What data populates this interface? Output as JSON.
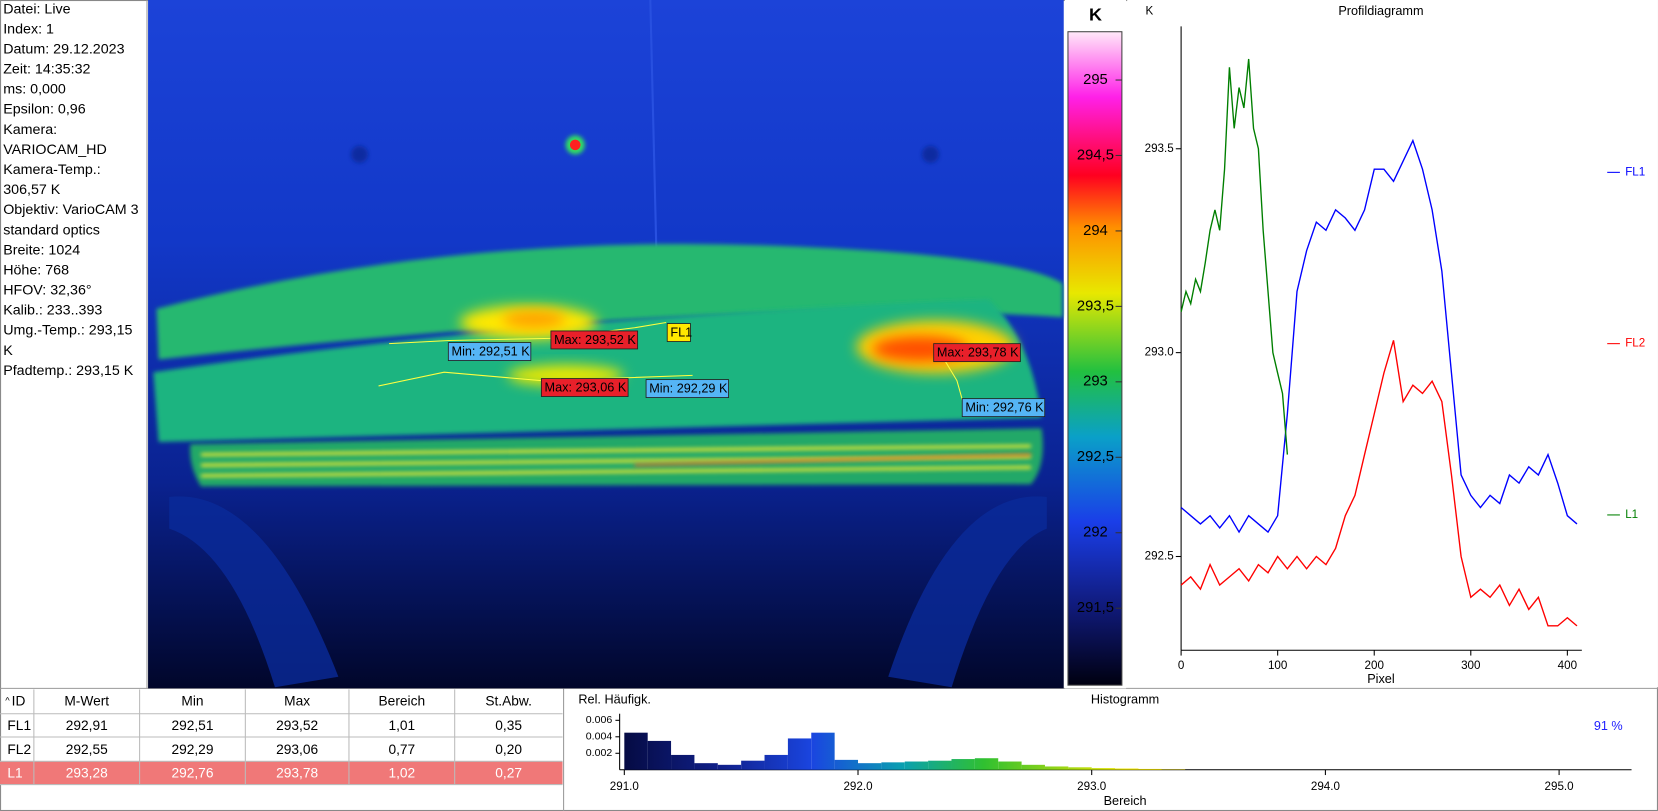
{
  "info_panel": {
    "lines": [
      "Datei: Live",
      "Index: 1",
      "Datum: 29.12.2023",
      "Zeit: 14:35:32",
      "ms: 0,000",
      "Epsilon: 0,96",
      "Kamera:",
      "VARIOCAM_HD",
      "Kamera-Temp.:",
      "306,57 K",
      "Objektiv: VarioCAM 3",
      "standard optics",
      "Breite: 1024",
      "Höhe: 768",
      "HFOV: 32,36°",
      "Kalib.: 233..393",
      "Umg.-Temp.: 293,15",
      "K",
      "Pfadtemp.: 293,15 K"
    ]
  },
  "thermal_image": {
    "labels": [
      "Min: 292,51 K",
      "Max: 293,52 K",
      "FL1",
      "Max: 293,06 K",
      "Min: 292,29 K",
      "Max: 293,78 K",
      "Min: 292,76 K"
    ]
  },
  "color_scale": {
    "unit": "K",
    "ylim": [
      290.99,
      295.32
    ],
    "ticks": [
      295,
      {
        "value": 294.5,
        "label": "294,5"
      },
      294,
      {
        "value": 293.5,
        "label": "293,5"
      },
      293,
      {
        "value": 292.5,
        "label": "292,5"
      },
      292,
      {
        "value": 291.5,
        "label": "291,5"
      }
    ]
  },
  "profile_chart": {
    "type": "line",
    "title": "Profildiagramm",
    "y_unit": "K",
    "x_label": "Pixel",
    "xlim": [
      0,
      415
    ],
    "ylim": [
      292.27,
      293.8
    ],
    "xticks": [
      0,
      100,
      200,
      300,
      400
    ],
    "yticks": [
      292.5,
      {
        "value": 293.0,
        "label": "293.0"
      },
      293.5
    ],
    "series": [
      {
        "name": "FL1",
        "color": "#0000ff",
        "x": [
          0,
          10,
          20,
          30,
          40,
          50,
          60,
          70,
          80,
          90,
          100,
          110,
          120,
          130,
          140,
          150,
          160,
          170,
          180,
          190,
          200,
          210,
          220,
          230,
          240,
          250,
          260,
          270,
          280,
          290,
          300,
          310,
          320,
          330,
          340,
          350,
          360,
          370,
          380,
          390,
          400,
          410
        ],
        "values": [
          292.62,
          292.6,
          292.58,
          292.6,
          292.57,
          292.6,
          292.56,
          292.6,
          292.58,
          292.56,
          292.6,
          292.85,
          293.15,
          293.25,
          293.32,
          293.3,
          293.35,
          293.33,
          293.3,
          293.35,
          293.45,
          293.45,
          293.42,
          293.47,
          293.52,
          293.45,
          293.35,
          293.2,
          292.95,
          292.7,
          292.65,
          292.62,
          292.65,
          292.63,
          292.7,
          292.68,
          292.72,
          292.7,
          292.75,
          292.68,
          292.6,
          292.58
        ]
      },
      {
        "name": "FL2",
        "color": "#ff0000",
        "x": [
          0,
          10,
          20,
          30,
          40,
          50,
          60,
          70,
          80,
          90,
          100,
          110,
          120,
          130,
          140,
          150,
          160,
          170,
          180,
          190,
          200,
          210,
          220,
          230,
          240,
          250,
          260,
          270,
          280,
          290,
          300,
          310,
          320,
          330,
          340,
          350,
          360,
          370,
          380,
          390,
          400,
          410
        ],
        "values": [
          292.43,
          292.45,
          292.42,
          292.48,
          292.43,
          292.45,
          292.47,
          292.44,
          292.48,
          292.46,
          292.5,
          292.47,
          292.5,
          292.47,
          292.5,
          292.48,
          292.52,
          292.6,
          292.65,
          292.75,
          292.85,
          292.95,
          293.03,
          292.88,
          292.92,
          292.9,
          292.93,
          292.88,
          292.7,
          292.5,
          292.4,
          292.42,
          292.4,
          292.43,
          292.38,
          292.42,
          292.37,
          292.4,
          292.33,
          292.33,
          292.35,
          292.33
        ]
      },
      {
        "name": "L1",
        "color": "#007f00",
        "x": [
          0,
          5,
          10,
          15,
          20,
          25,
          30,
          35,
          40,
          45,
          50,
          55,
          60,
          65,
          70,
          75,
          80,
          85,
          90,
          95,
          100,
          105,
          110
        ],
        "values": [
          293.1,
          293.15,
          293.12,
          293.18,
          293.15,
          293.22,
          293.3,
          293.35,
          293.3,
          293.45,
          293.7,
          293.55,
          293.65,
          293.6,
          293.72,
          293.55,
          293.5,
          293.3,
          293.15,
          293.0,
          292.95,
          292.9,
          292.75
        ]
      }
    ]
  },
  "histogram": {
    "type": "histogram",
    "title": "Histogramm",
    "y_label": "Rel. Häufigk.",
    "x_label": "Bereich",
    "percent_label": "91 %",
    "xlim": [
      290.98,
      295.31
    ],
    "ylim": [
      0,
      0.0068
    ],
    "xticks": [
      {
        "value": 291.0,
        "label": "291.0"
      },
      {
        "value": 292.0,
        "label": "292.0"
      },
      {
        "value": 293.0,
        "label": "293.0"
      },
      {
        "value": 294.0,
        "label": "294.0"
      },
      {
        "value": 295.0,
        "label": "295.0"
      }
    ],
    "yticks": [
      0.002,
      0.004,
      0.006
    ],
    "bins": [
      291.0,
      291.1,
      291.2,
      291.3,
      291.4,
      291.5,
      291.6,
      291.7,
      291.8,
      291.9,
      292.0,
      292.1,
      292.2,
      292.3,
      292.4,
      292.5,
      292.6,
      292.7,
      292.8,
      292.9,
      293.0,
      293.1,
      293.2,
      293.3,
      293.4
    ],
    "counts": [
      0.0045,
      0.0035,
      0.0018,
      0.0008,
      0.0006,
      0.0011,
      0.0018,
      0.0038,
      0.0045,
      0.0012,
      0.0008,
      0.0009,
      0.001,
      0.0011,
      0.0013,
      0.0014,
      0.001,
      0.0006,
      0.0004,
      0.0003,
      0.0002,
      0.00015,
      0.0001,
      5e-05
    ]
  },
  "table": {
    "header": [
      "ID",
      "M-Wert",
      "Min",
      "Max",
      "Bereich",
      "St.Abw."
    ],
    "rows": [
      [
        "FL1",
        "292,91",
        "292,51",
        "293,52",
        "1,01",
        "0,35"
      ],
      [
        "FL2",
        "292,55",
        "292,29",
        "293,06",
        "0,77",
        "0,20"
      ],
      [
        "L1",
        "293,28",
        "292,76",
        "293,78",
        "1,02",
        "0,27"
      ]
    ]
  }
}
